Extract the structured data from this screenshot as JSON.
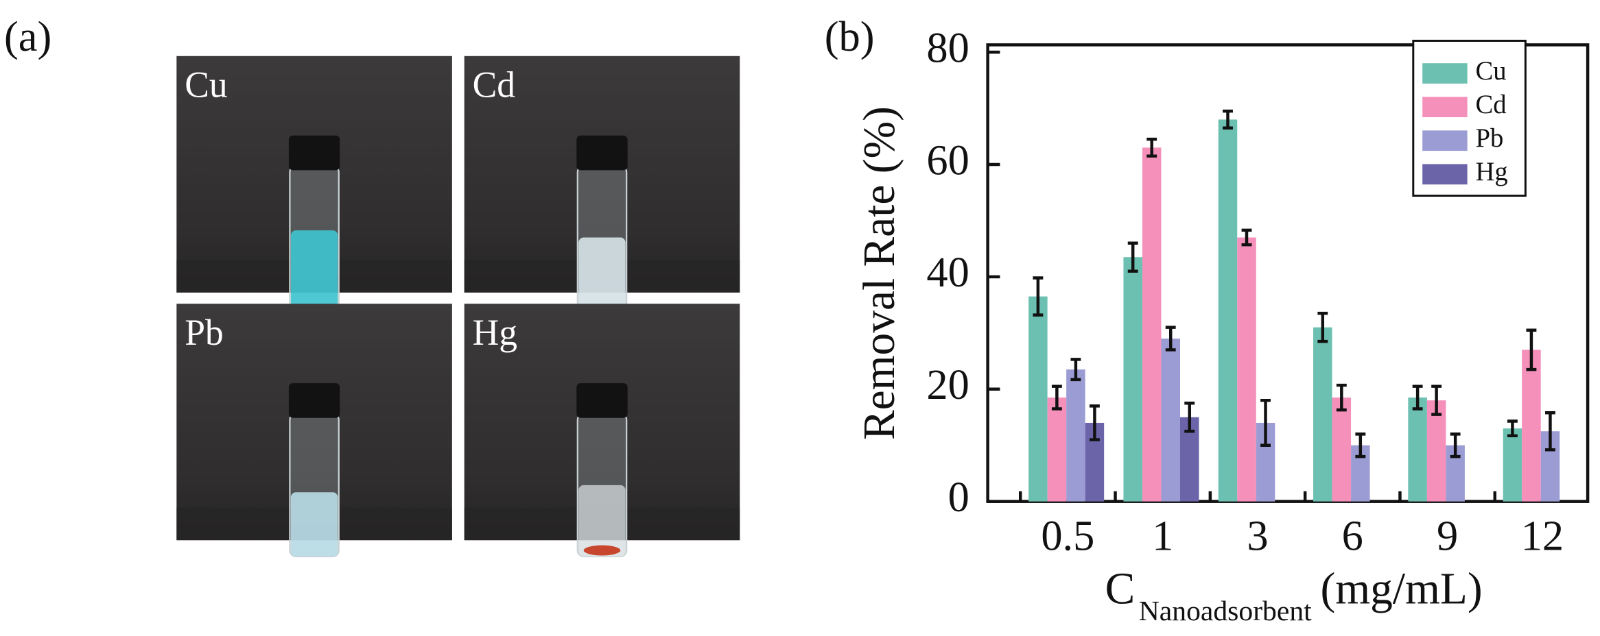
{
  "panel_a": {
    "label": "(a)",
    "photos": [
      "Cu",
      "Cd",
      "Pb",
      "Hg"
    ]
  },
  "chart_data": {
    "type": "bar",
    "panel_label": "(b)",
    "y_label": "Removal Rate (%)",
    "x_label": {
      "main": "C",
      "subscript": "Nanoadsorbent",
      "unit": "(mg/mL)"
    },
    "categories": [
      "0.5",
      "1",
      "3",
      "6",
      "9",
      "12"
    ],
    "series": [
      {
        "name": "Cu",
        "color": "#6cc0b1",
        "values": [
          36.5,
          43.5,
          68,
          31,
          18.5,
          13
        ],
        "errors": [
          3.3,
          2.5,
          1.5,
          2.5,
          2,
          1.3
        ]
      },
      {
        "name": "Cd",
        "color": "#f590bb",
        "values": [
          18.5,
          63,
          47,
          18.5,
          18,
          27
        ],
        "errors": [
          2,
          1.5,
          1.3,
          2.2,
          2.5,
          3.5
        ]
      },
      {
        "name": "Pb",
        "color": "#9c9cd4",
        "values": [
          23.5,
          29,
          14,
          10,
          10,
          12.5
        ],
        "errors": [
          1.8,
          2,
          4,
          2,
          2,
          3.3
        ]
      },
      {
        "name": "Hg",
        "color": "#6b64a9",
        "values": [
          14,
          15,
          null,
          null,
          null,
          null
        ],
        "errors": [
          3,
          2.5,
          null,
          null,
          null,
          null
        ]
      }
    ],
    "ylim": [
      0,
      81.3
    ],
    "yticks": [
      0,
      20,
      40,
      60,
      80
    ],
    "legend": "upper right"
  }
}
